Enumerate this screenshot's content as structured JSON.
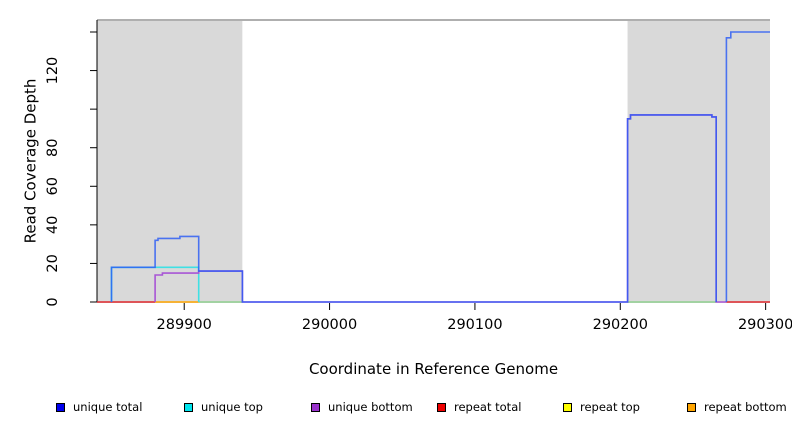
{
  "chart_data": {
    "type": "line",
    "title": "",
    "xlabel": "Coordinate in Reference Genome",
    "ylabel": "Read Coverage Depth",
    "xlim": [
      289840,
      290303
    ],
    "ylim": [
      0,
      146
    ],
    "grid": false,
    "legend_position": "bottom",
    "x_ticks": [
      {
        "value": 289900,
        "label": "289900"
      },
      {
        "value": 290000,
        "label": "290000"
      },
      {
        "value": 290100,
        "label": "290100"
      },
      {
        "value": 290200,
        "label": "290200"
      },
      {
        "value": 290300,
        "label": "290300"
      }
    ],
    "y_ticks": [
      {
        "value": 0,
        "label": "0"
      },
      {
        "value": 20,
        "label": "20"
      },
      {
        "value": 40,
        "label": "40"
      },
      {
        "value": 60,
        "label": "60"
      },
      {
        "value": 80,
        "label": "80"
      },
      {
        "value": 100,
        "label": ""
      },
      {
        "value": 120,
        "label": "120"
      },
      {
        "value": 140,
        "label": ""
      }
    ],
    "shaded_regions": [
      {
        "x1": 289840,
        "x2": 289940,
        "color": "#D9D9D9"
      },
      {
        "x1": 290205,
        "x2": 290303,
        "color": "#D9D9D9"
      }
    ],
    "plot_border_color": "#7F7F7F",
    "axis_color": "#000000",
    "series": [
      {
        "name": "repeat total",
        "color": "#E0282E",
        "opacity": 1,
        "paths": [
          [
            [
              289840,
              0
            ],
            [
              289880,
              0
            ]
          ],
          [
            [
              290273,
              0
            ],
            [
              290303,
              0
            ]
          ]
        ]
      },
      {
        "name": "repeat bottom",
        "color": "#FFA500",
        "opacity": 1,
        "paths": [
          [
            [
              289880,
              0
            ],
            [
              289910,
              0
            ]
          ]
        ]
      },
      {
        "name": "repeat top",
        "color": "#FFFF00",
        "opacity": 1,
        "paths": []
      },
      {
        "name": "coverage-zero-overlap",
        "color": "#8FCF8F",
        "opacity": 1,
        "paths": [
          [
            [
              289910,
              0
            ],
            [
              289940,
              0
            ]
          ],
          [
            [
              290205,
              0
            ],
            [
              290266,
              0
            ]
          ]
        ]
      },
      {
        "name": "unique top",
        "color": "#3FE0E4",
        "opacity": 1,
        "paths": [
          [
            [
              289850,
              0
            ],
            [
              289850,
              18
            ],
            [
              289910,
              18
            ],
            [
              289910,
              0
            ]
          ]
        ]
      },
      {
        "name": "unique bottom",
        "color": "#A855D6",
        "opacity": 1,
        "paths": [
          [
            [
              289880,
              0
            ],
            [
              289880,
              14
            ],
            [
              289885,
              14
            ],
            [
              289885,
              15
            ],
            [
              289910,
              15
            ],
            [
              289910,
              16
            ],
            [
              289940,
              16
            ],
            [
              289940,
              0
            ],
            [
              290205,
              0
            ],
            [
              290205,
              95
            ],
            [
              290207,
              95
            ],
            [
              290207,
              97
            ],
            [
              290263,
              97
            ],
            [
              290263,
              96
            ],
            [
              290266,
              96
            ],
            [
              290266,
              0
            ],
            [
              290273,
              0
            ]
          ]
        ]
      },
      {
        "name": "unique total",
        "color": "#2B5BF5",
        "opacity": 0.82,
        "paths": [
          [
            [
              289850,
              0
            ],
            [
              289850,
              18
            ],
            [
              289880,
              18
            ],
            [
              289880,
              32
            ],
            [
              289882,
              32
            ],
            [
              289882,
              33
            ],
            [
              289897,
              33
            ],
            [
              289897,
              34
            ],
            [
              289910,
              34
            ],
            [
              289910,
              16
            ],
            [
              289940,
              16
            ],
            [
              289940,
              0
            ],
            [
              290205,
              0
            ],
            [
              290205,
              95
            ],
            [
              290207,
              95
            ],
            [
              290207,
              97
            ],
            [
              290263,
              97
            ],
            [
              290263,
              96
            ],
            [
              290266,
              96
            ],
            [
              290266,
              0
            ]
          ],
          [
            [
              290273,
              0
            ],
            [
              290273,
              137
            ],
            [
              290276,
              137
            ],
            [
              290276,
              140
            ],
            [
              290303,
              140
            ]
          ]
        ]
      }
    ]
  },
  "legend": {
    "items": [
      {
        "label": "unique total",
        "color": "#0000EE"
      },
      {
        "label": "unique top",
        "color": "#00E5EE"
      },
      {
        "label": "unique bottom",
        "color": "#9932CC"
      },
      {
        "label": "repeat total",
        "color": "#EE0000"
      },
      {
        "label": "repeat top",
        "color": "#FFFF00"
      },
      {
        "label": "repeat bottom",
        "color": "#FFA500"
      }
    ]
  },
  "labels": {
    "x_axis_title": "Coordinate in Reference Genome",
    "y_axis_title": "Read Coverage Depth"
  }
}
